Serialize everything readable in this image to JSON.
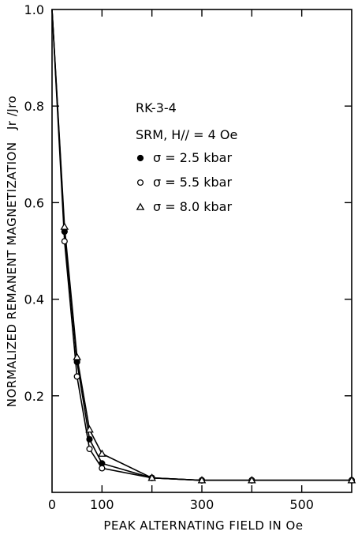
{
  "chart_data": {
    "type": "line",
    "title": "",
    "xlabel": "PEAK ALTERNATING FIELD IN Oe",
    "ylabel": "NORMALIZED REMANENT MAGNETIZATION",
    "ylabel_symbol": "Jr /Jro",
    "xlim": [
      0,
      600
    ],
    "ylim": [
      0,
      1.0
    ],
    "x_ticks": [
      0,
      100,
      300,
      500
    ],
    "x_tick_labels": [
      "0",
      "100",
      "300",
      "500"
    ],
    "x_minor_ticks": [
      200,
      400
    ],
    "y_ticks": [
      0.2,
      0.4,
      0.6,
      0.8,
      1.0
    ],
    "y_tick_labels": [
      "0.2",
      "0.4",
      "0.6",
      "0.8",
      "1.0"
    ],
    "grid": false,
    "legend_placement": "upper-middle",
    "annotation": {
      "sample": "RK-3-4",
      "condition": "SRM,  H// = 4 Oe"
    },
    "series": [
      {
        "name": "σ = 2.5 kbar",
        "marker": "filled-circle",
        "x": [
          0,
          25,
          50,
          75,
          100,
          200,
          300,
          400,
          600
        ],
        "y": [
          1.0,
          0.54,
          0.27,
          0.11,
          0.06,
          0.03,
          0.025,
          0.025,
          0.025
        ]
      },
      {
        "name": "σ = 5.5 kbar",
        "marker": "open-circle",
        "x": [
          0,
          25,
          50,
          75,
          100,
          200,
          300,
          400,
          600
        ],
        "y": [
          1.0,
          0.52,
          0.24,
          0.09,
          0.05,
          0.03,
          0.025,
          0.025,
          0.025
        ]
      },
      {
        "name": "σ = 8.0 kbar",
        "marker": "open-triangle",
        "x": [
          0,
          25,
          50,
          75,
          100,
          200,
          300,
          400,
          600
        ],
        "y": [
          1.0,
          0.55,
          0.28,
          0.13,
          0.08,
          0.03,
          0.025,
          0.025,
          0.025
        ]
      }
    ]
  }
}
